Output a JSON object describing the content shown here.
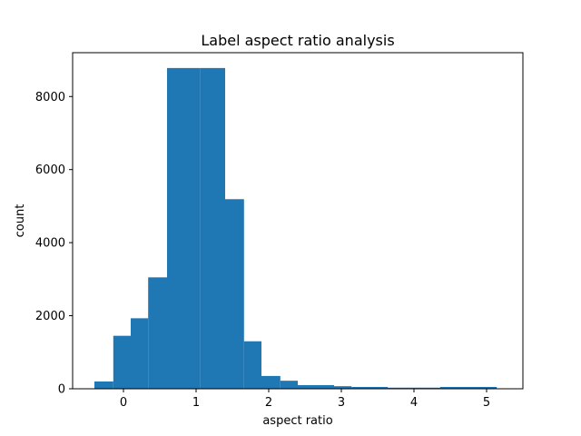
{
  "chart_data": {
    "type": "bar",
    "histogram": true,
    "title": "Label aspect ratio analysis",
    "xlabel": "aspect ratio",
    "ylabel": "count",
    "xlim": [
      -0.7,
      5.5
    ],
    "ylim": [
      0,
      9200
    ],
    "xticks": [
      "0",
      "1",
      "2",
      "3",
      "4",
      "5"
    ],
    "yticks": [
      "0",
      "2000",
      "4000",
      "6000",
      "8000"
    ],
    "bins": [
      {
        "x0": -0.4,
        "x1": -0.14,
        "value": 200
      },
      {
        "x0": -0.14,
        "x1": 0.1,
        "value": 1450
      },
      {
        "x0": 0.1,
        "x1": 0.34,
        "value": 1930
      },
      {
        "x0": 0.34,
        "x1": 0.6,
        "value": 3050
      },
      {
        "x0": 0.6,
        "x1": 1.06,
        "value": 8780
      },
      {
        "x0": 1.06,
        "x1": 1.4,
        "value": 8780
      },
      {
        "x0": 1.4,
        "x1": 1.66,
        "value": 5190
      },
      {
        "x0": 1.66,
        "x1": 1.9,
        "value": 1300
      },
      {
        "x0": 1.9,
        "x1": 2.16,
        "value": 350
      },
      {
        "x0": 2.16,
        "x1": 2.4,
        "value": 220
      },
      {
        "x0": 2.4,
        "x1": 2.9,
        "value": 100
      },
      {
        "x0": 2.9,
        "x1": 3.14,
        "value": 70
      },
      {
        "x0": 3.14,
        "x1": 3.64,
        "value": 50
      },
      {
        "x0": 3.64,
        "x1": 4.36,
        "value": 30
      },
      {
        "x0": 4.36,
        "x1": 5.14,
        "value": 50
      }
    ],
    "bar_color": "#1f77b4",
    "grid": false
  }
}
